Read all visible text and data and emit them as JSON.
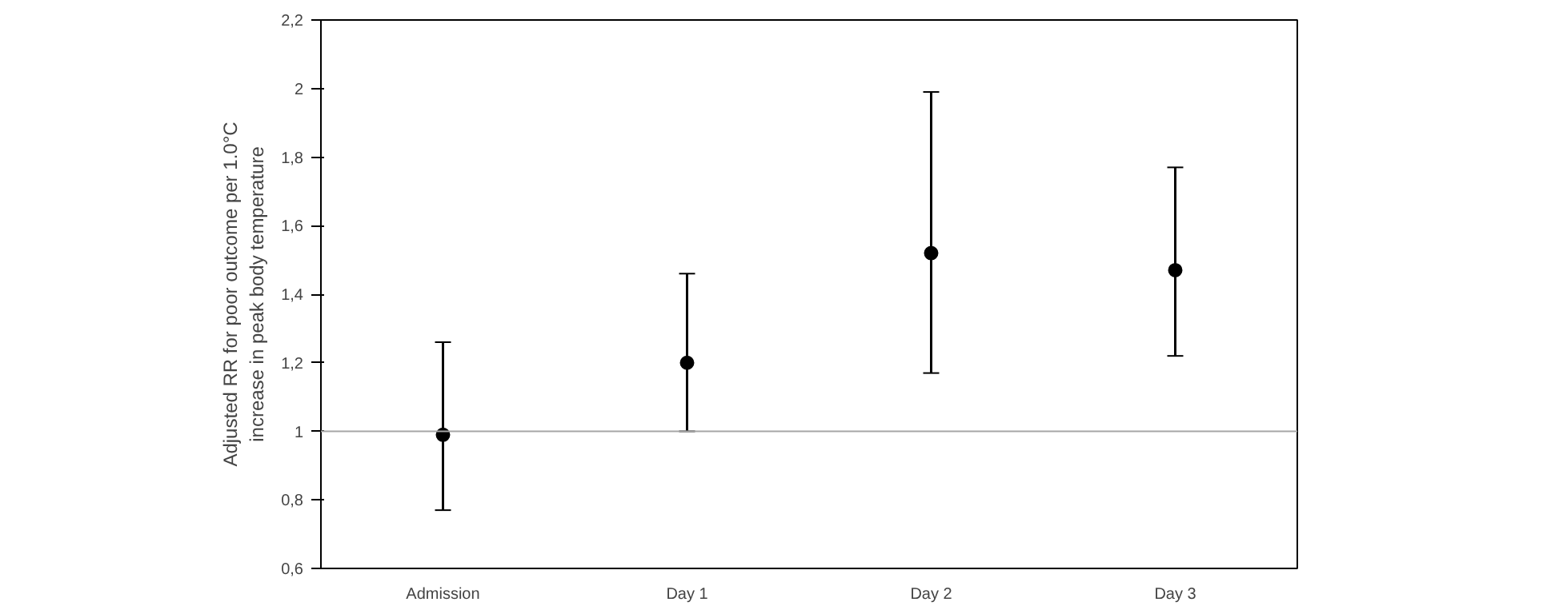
{
  "chart_data": {
    "type": "scatter",
    "ylabel": "Adjusted RR for poor outcome per 1.0°C\nincrease in peak body temperature",
    "categories": [
      "Admission",
      "Day 1",
      "Day 2",
      "Day 3"
    ],
    "values": [
      0.99,
      1.2,
      1.52,
      1.47
    ],
    "errors": [
      [
        0.77,
        1.26
      ],
      [
        1.0,
        1.46
      ],
      [
        1.17,
        1.99
      ],
      [
        1.22,
        1.77
      ]
    ],
    "color": "#000000",
    "marker": "circle",
    "ylim": [
      0.6,
      2.2
    ],
    "yticks": [
      {
        "value": 0.6,
        "label": "0,6"
      },
      {
        "value": 0.8,
        "label": "0,8"
      },
      {
        "value": 1,
        "label": "1"
      },
      {
        "value": 1.2,
        "label": "1,2"
      },
      {
        "value": 1.4,
        "label": "1,4"
      },
      {
        "value": 1.6,
        "label": "1,6"
      },
      {
        "value": 1.8,
        "label": "1,8"
      },
      {
        "value": 2,
        "label": "2"
      },
      {
        "value": 2.2,
        "label": "2,2"
      }
    ],
    "ref_lines": [
      {
        "axis": "y",
        "value": 1,
        "color": "#a6a6a6"
      }
    ],
    "grid": false
  }
}
